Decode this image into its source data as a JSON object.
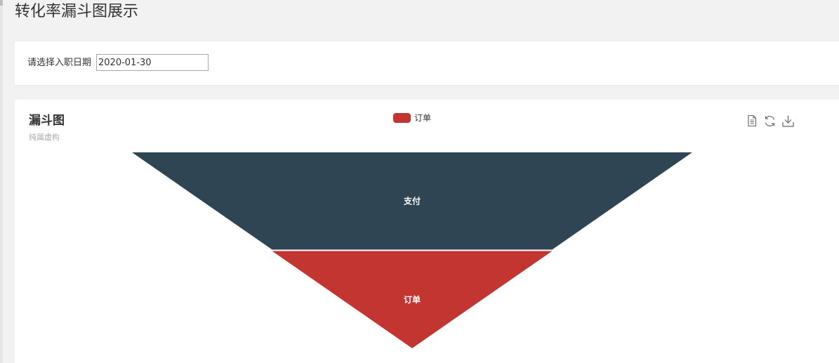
{
  "page": {
    "title": "转化率漏斗图展示"
  },
  "filter": {
    "label": "请选择入职日期",
    "date_value": "2020-01-30"
  },
  "toolbox": {
    "icons": [
      "data-view-icon",
      "refresh-icon",
      "download-icon"
    ]
  },
  "colors": {
    "dark": "#2f4554",
    "red": "#c23531",
    "label": "#ffffff"
  },
  "chart_data": {
    "type": "funnel",
    "title": "漏斗图",
    "subtitle": "纯属虚构",
    "legend": [
      "订单"
    ],
    "legend_position": "top-center",
    "sort": "descending",
    "series": [
      {
        "name": "支付",
        "value": 100,
        "color": "#2f4554"
      },
      {
        "name": "订单",
        "value": 50,
        "color": "#c23531"
      }
    ]
  }
}
